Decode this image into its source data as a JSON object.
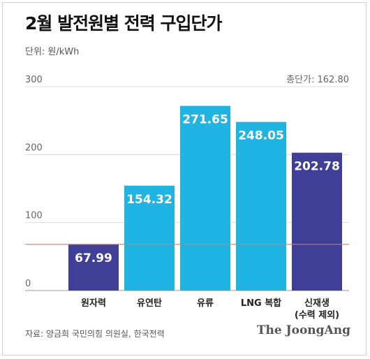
{
  "title": "2월 발전원별 전력 구입단가",
  "unit_label": "단위: 원/kWh",
  "total_label": "총단가: 162.80",
  "source": "자료: 양금희 국민의힘 의원실, 한국전력",
  "brand": "The JoongAng",
  "colors": {
    "navy": "#3f3f97",
    "cyan": "#1fb4e2",
    "refline": "#e07a55",
    "grid": "#d9d9d9",
    "bg": "#ffffff"
  },
  "chart_data": {
    "type": "bar",
    "categories": [
      "원자력",
      "유연탄",
      "유류",
      "LNG 복합",
      "신재생\n(수력 제외)"
    ],
    "values": [
      67.99,
      154.32,
      271.65,
      248.05,
      202.78
    ],
    "value_labels": [
      "67.99",
      "154.32",
      "271.65",
      "248.05",
      "202.78"
    ],
    "bar_colors": [
      "#3f3f97",
      "#1fb4e2",
      "#1fb4e2",
      "#1fb4e2",
      "#3f3f97"
    ],
    "yticks": [
      0,
      100,
      200,
      300
    ],
    "ytick_labels": [
      "0",
      "100",
      "200",
      "300"
    ],
    "ylim": [
      0,
      300
    ],
    "reference_value": 68,
    "grid": true,
    "xlabel": "",
    "ylabel": ""
  }
}
